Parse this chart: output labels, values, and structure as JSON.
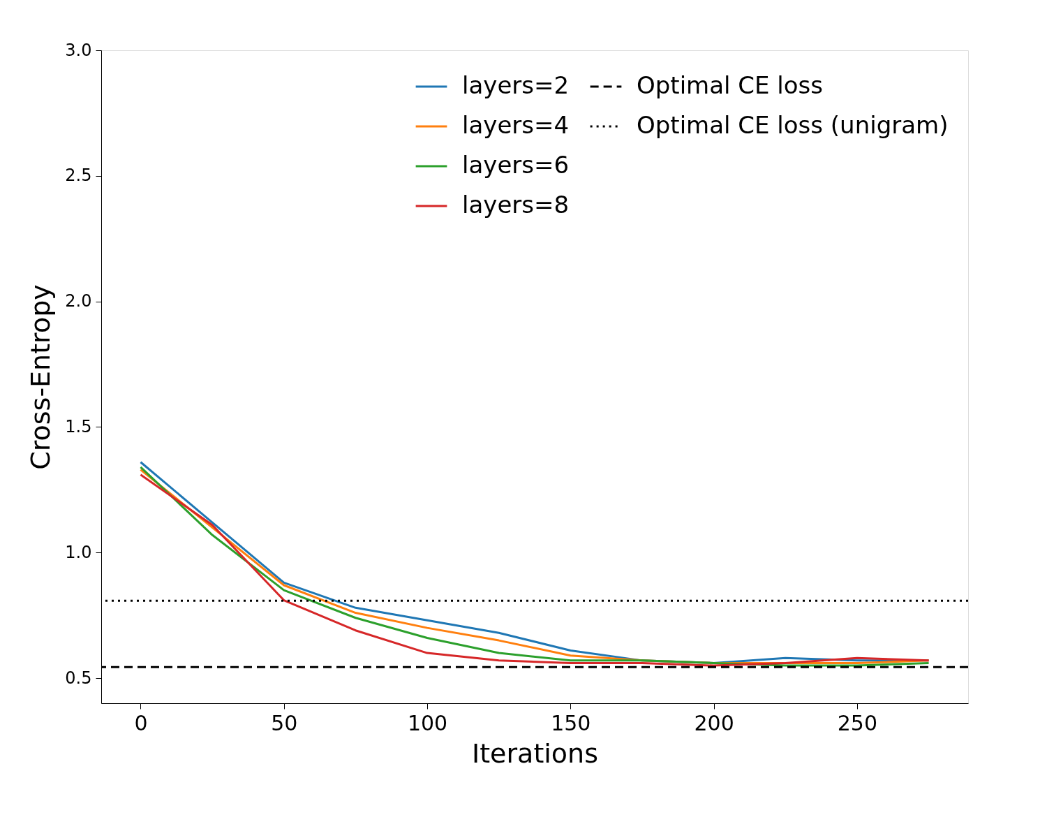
{
  "chart_data": {
    "type": "line",
    "xlabel": "Iterations",
    "ylabel": "Cross-Entropy",
    "x": [
      0,
      25,
      50,
      75,
      100,
      125,
      150,
      175,
      200,
      225,
      250,
      275
    ],
    "series": [
      {
        "name": "layers=2",
        "color": "#1f77b4",
        "values": [
          1.36,
          1.12,
          0.88,
          0.78,
          0.73,
          0.68,
          0.61,
          0.57,
          0.56,
          0.58,
          0.57,
          0.57
        ]
      },
      {
        "name": "layers=4",
        "color": "#ff7f0e",
        "values": [
          1.33,
          1.1,
          0.87,
          0.76,
          0.7,
          0.65,
          0.59,
          0.57,
          0.56,
          0.56,
          0.56,
          0.57
        ]
      },
      {
        "name": "layers=6",
        "color": "#2ca02c",
        "values": [
          1.34,
          1.07,
          0.85,
          0.74,
          0.66,
          0.6,
          0.57,
          0.57,
          0.56,
          0.55,
          0.55,
          0.56
        ]
      },
      {
        "name": "layers=8",
        "color": "#d62728",
        "values": [
          1.31,
          1.11,
          0.81,
          0.69,
          0.6,
          0.57,
          0.56,
          0.56,
          0.55,
          0.56,
          0.58,
          0.57
        ]
      }
    ],
    "ref_lines": [
      {
        "axis": "y",
        "value": 0.544,
        "label": "Optimal CE loss",
        "color": "#000000",
        "line_style": "dashed"
      },
      {
        "axis": "y",
        "value": 0.808,
        "label": "Optimal CE loss (unigram)",
        "color": "#000000",
        "line_style": "dotted"
      }
    ],
    "xlim": [
      -13.75,
      288.75
    ],
    "xticks": [
      0,
      50,
      100,
      150,
      200,
      250
    ],
    "ylim": [
      0.4,
      3.0
    ],
    "yticks": [
      {
        "value": 0.5,
        "label": "0.5"
      },
      {
        "value": 1,
        "label": "1.0"
      },
      {
        "value": 1.5,
        "label": "1.5"
      },
      {
        "value": 2,
        "label": "2.0"
      },
      {
        "value": 2.5,
        "label": "2.5"
      },
      {
        "value": 3,
        "label": "3.0"
      }
    ],
    "grid": false,
    "legend": "top right",
    "line_style": "solid",
    "marker": "none"
  }
}
